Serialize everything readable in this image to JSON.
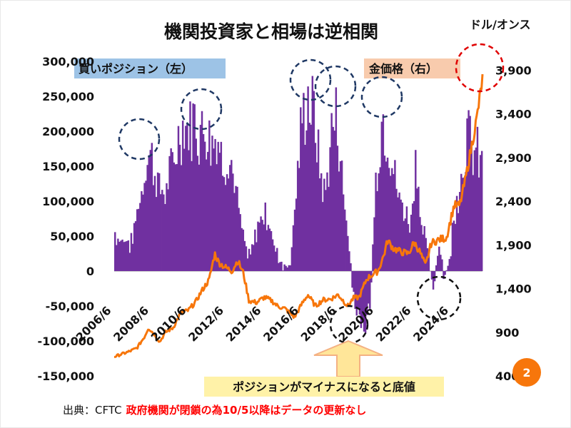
{
  "slide": {
    "title": "機関投資家と相場は逆相関",
    "right_unit": "ドル/オンス",
    "label_left": "買いポジション（左）",
    "label_right": "金価格（右）",
    "callout": "ポジションがマイナスになると底値",
    "source_prefix": "出典：CFTC",
    "source_note": "政府機関が閉鎖の為10/5以降はデータの更新なし",
    "page_number": "2",
    "colors": {
      "bars": "#7030a0",
      "gold_line": "#f7760b",
      "left_label_bg": "#9dc3e6",
      "right_label_bg": "#f8cbad",
      "callout_bg": "#fff2a8",
      "arrow_fill": "#ffe699",
      "arrow_stroke": "#f4b183",
      "circle_blue": "#1f3864",
      "circle_black": "#111111",
      "circle_red": "#e00000",
      "note_red": "#ff0000",
      "badge": "#f7760b"
    }
  },
  "chart_data": {
    "type": "bar+line",
    "title": "機関投資家と相場は逆相関",
    "xlabel": "",
    "ylabel_left": "",
    "ylabel_right": "ドル/オンス",
    "x_ticks": [
      "2006/6",
      "2008/6",
      "2010/6",
      "2012/6",
      "2014/6",
      "2016/6",
      "2018/6",
      "2020/6",
      "2022/6",
      "2024/6"
    ],
    "x_range": [
      2006.4,
      2025.8
    ],
    "left_axis": {
      "range": [
        -150000,
        300000
      ],
      "ticks": [
        "300,000",
        "250,000",
        "200,000",
        "150,000",
        "100,000",
        "50,000",
        "0",
        "-50,000",
        "-100,000",
        "-150,000"
      ],
      "tick_values": [
        300000,
        250000,
        200000,
        150000,
        100000,
        50000,
        0,
        -50000,
        -100000,
        -150000
      ]
    },
    "right_axis": {
      "range": [
        400,
        4000
      ],
      "ticks": [
        "3,900",
        "3,400",
        "2,900",
        "2,400",
        "1,900",
        "1,400",
        "900",
        "400"
      ],
      "tick_values": [
        3900,
        3400,
        2900,
        2400,
        1900,
        1400,
        900,
        400
      ]
    },
    "series": [
      {
        "name": "買いポジション（左）",
        "type": "bar",
        "axis": "left",
        "x": [
          2006.4,
          2006.7,
          2007.0,
          2007.3,
          2007.6,
          2007.9,
          2008.2,
          2008.5,
          2008.8,
          2009.1,
          2009.4,
          2009.7,
          2010.0,
          2010.3,
          2010.6,
          2010.9,
          2011.2,
          2011.5,
          2011.8,
          2012.1,
          2012.4,
          2012.7,
          2013.0,
          2013.3,
          2013.6,
          2013.9,
          2014.2,
          2014.5,
          2014.8,
          2015.1,
          2015.4,
          2015.7,
          2016.0,
          2016.3,
          2016.6,
          2016.9,
          2017.2,
          2017.5,
          2017.8,
          2018.1,
          2018.4,
          2018.7,
          2019.0,
          2019.3,
          2019.6,
          2019.9,
          2020.2,
          2020.5,
          2020.8,
          2021.1,
          2021.4,
          2021.7,
          2022.0,
          2022.3,
          2022.6,
          2022.9,
          2023.2,
          2023.5,
          2023.8,
          2024.1,
          2024.4,
          2024.7,
          2025.0,
          2025.3,
          2025.6,
          2025.8
        ],
        "values": [
          60000,
          45000,
          50000,
          40000,
          90000,
          130000,
          185000,
          160000,
          120000,
          120000,
          150000,
          190000,
          220000,
          215000,
          230000,
          210000,
          220000,
          200000,
          205000,
          165000,
          180000,
          140000,
          80000,
          30000,
          25000,
          60000,
          90000,
          80000,
          40000,
          20000,
          5000,
          20000,
          130000,
          230000,
          260000,
          240000,
          160000,
          110000,
          200000,
          240000,
          140000,
          60000,
          -40000,
          -70000,
          -90000,
          -40000,
          150000,
          230000,
          210000,
          150000,
          110000,
          90000,
          70000,
          180000,
          60000,
          40000,
          -40000,
          50000,
          -20000,
          30000,
          110000,
          150000,
          210000,
          180000,
          170000,
          160000
        ]
      },
      {
        "name": "金価格（右）",
        "type": "line",
        "axis": "right",
        "x": [
          2006.4,
          2006.8,
          2007.2,
          2007.6,
          2008.0,
          2008.2,
          2008.5,
          2008.8,
          2009.1,
          2009.5,
          2009.9,
          2010.3,
          2010.7,
          2011.0,
          2011.4,
          2011.7,
          2011.9,
          2012.2,
          2012.6,
          2012.9,
          2013.2,
          2013.5,
          2013.9,
          2014.3,
          2014.7,
          2015.0,
          2015.4,
          2015.9,
          2016.3,
          2016.6,
          2017.0,
          2017.4,
          2017.8,
          2018.2,
          2018.7,
          2019.0,
          2019.3,
          2019.7,
          2020.0,
          2020.3,
          2020.6,
          2020.8,
          2021.1,
          2021.5,
          2021.9,
          2022.2,
          2022.5,
          2022.8,
          2023.1,
          2023.5,
          2023.9,
          2024.3,
          2024.6,
          2024.9,
          2025.2,
          2025.5,
          2025.8
        ],
        "values": [
          620,
          650,
          680,
          720,
          850,
          950,
          880,
          790,
          900,
          950,
          1120,
          1150,
          1250,
          1370,
          1500,
          1800,
          1700,
          1650,
          1600,
          1720,
          1580,
          1260,
          1240,
          1300,
          1260,
          1200,
          1170,
          1070,
          1230,
          1330,
          1200,
          1270,
          1280,
          1330,
          1200,
          1290,
          1300,
          1510,
          1560,
          1600,
          1780,
          1950,
          1860,
          1820,
          1800,
          1930,
          1820,
          1660,
          1920,
          1960,
          1980,
          2350,
          2350,
          2650,
          3000,
          3350,
          3800
        ]
      }
    ],
    "annotations": [
      {
        "type": "circle",
        "color": "blue-dashed",
        "near_x": "2008/6",
        "near_value": 190000
      },
      {
        "type": "circle",
        "color": "blue-dashed",
        "near_x": "2011/6",
        "near_value": 230000
      },
      {
        "type": "circle",
        "color": "blue-dashed",
        "near_x": "2016/6",
        "near_value": 265000
      },
      {
        "type": "circle",
        "color": "blue-dashed",
        "near_x": "2017/6",
        "near_value": 255000
      },
      {
        "type": "circle",
        "color": "blue-dashed",
        "near_x": "2020/6",
        "near_value": 240000
      },
      {
        "type": "circle",
        "color": "black-dashed",
        "near_x": "2019/6",
        "near_value": -90000
      },
      {
        "type": "circle",
        "color": "black-dashed",
        "near_x": "2023/6",
        "near_value": -40000
      },
      {
        "type": "circle",
        "color": "red-dashed",
        "near_x": "2025/6",
        "near_value": 3800
      }
    ]
  }
}
